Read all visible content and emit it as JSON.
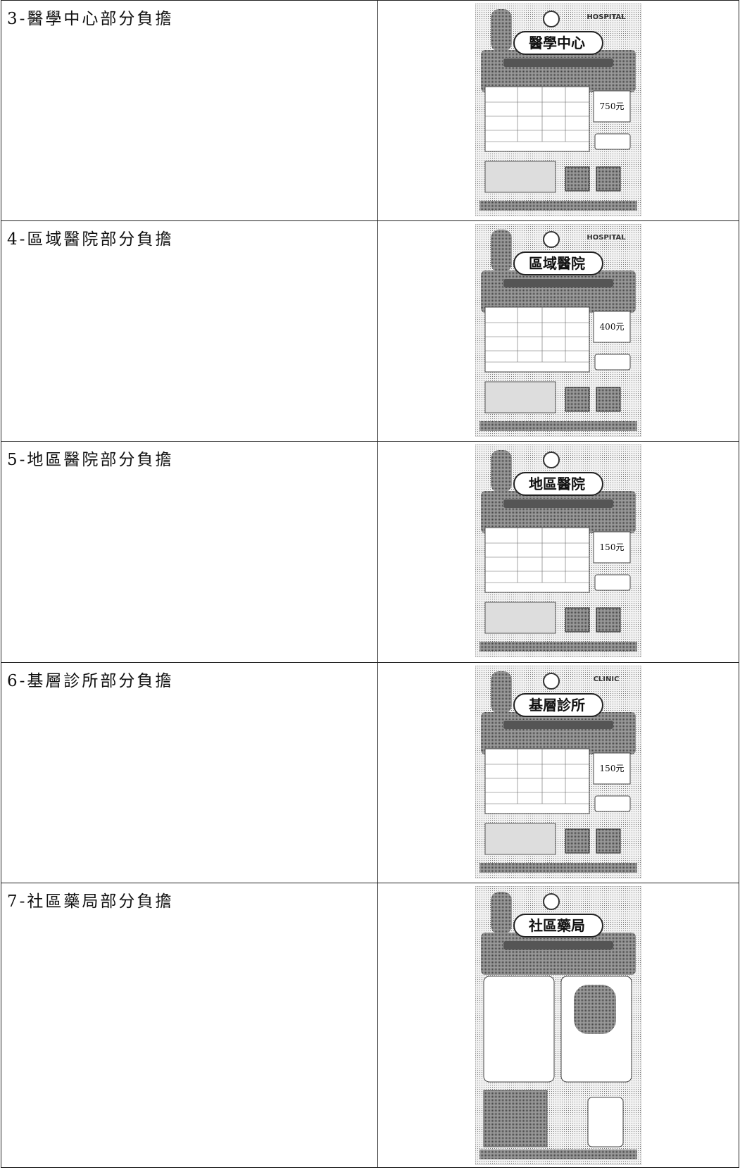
{
  "rows": [
    {
      "label": "3-醫學中心部分負擔",
      "poster": {
        "badge": "HOSPITAL",
        "title": "醫學中心",
        "price": "750元"
      }
    },
    {
      "label": "4-區域醫院部分負擔",
      "poster": {
        "badge": "HOSPITAL",
        "title": "區域醫院",
        "price": "400元"
      }
    },
    {
      "label": "5-地區醫院部分負擔",
      "poster": {
        "title": "地區醫院",
        "price": "150元"
      }
    },
    {
      "label": "6-基層診所部分負擔",
      "poster": {
        "badge": "CLINIC",
        "title": "基層診所",
        "price": "150元"
      }
    },
    {
      "label": "7-社區藥局部分負擔",
      "poster": {
        "title": "社區藥局"
      }
    }
  ]
}
